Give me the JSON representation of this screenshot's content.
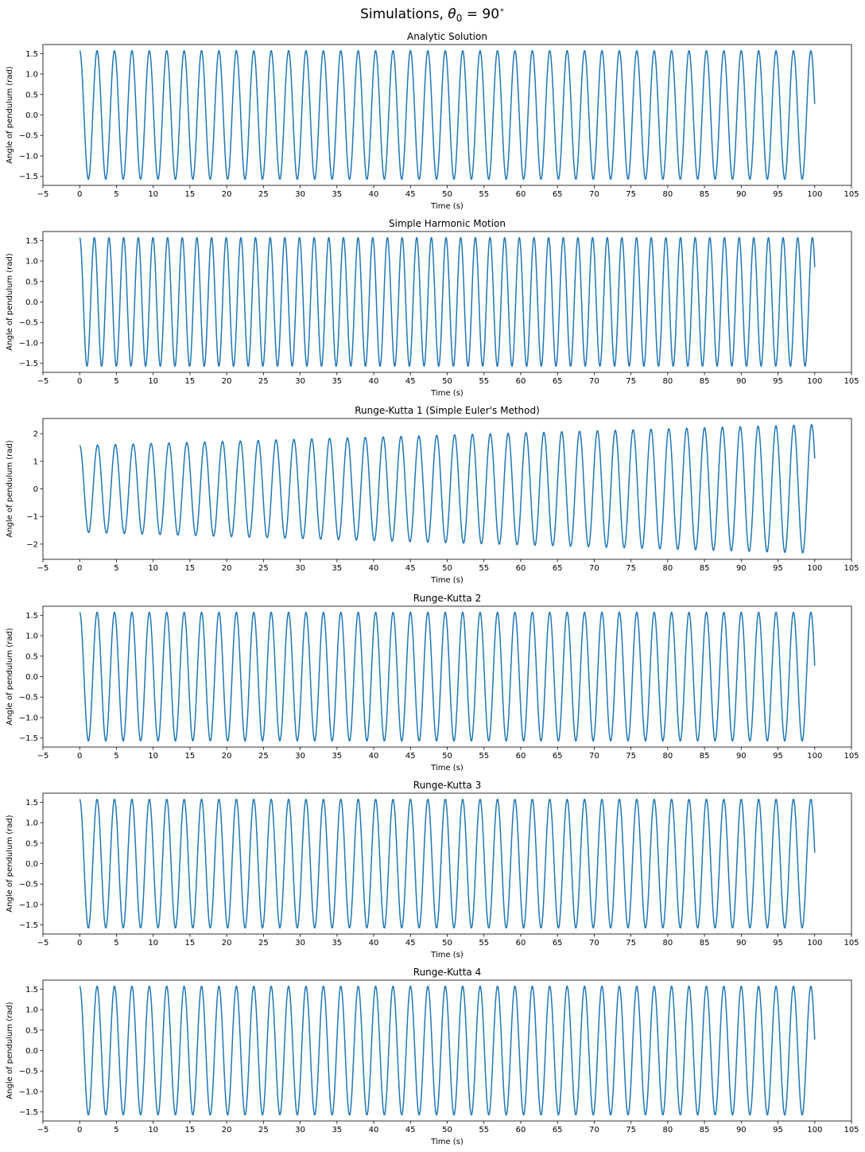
{
  "figure": {
    "suptitle_prefix": "Simulations, ",
    "suptitle_theta": "θ",
    "suptitle_sub": "0",
    "suptitle_suffix": " = 90",
    "suptitle_degree": "∘"
  },
  "style": {
    "line_color": "#1f77b4",
    "spine_color": "#000000",
    "background": "#ffffff"
  },
  "chart_data": [
    {
      "type": "line",
      "title": "Analytic Solution",
      "xlabel": "Time (s)",
      "ylabel": "Angle of pendulum (rad)",
      "xlim": [
        -5,
        105
      ],
      "ylim": [
        -1.72,
        1.72
      ],
      "xticks": [
        -5,
        0,
        5,
        10,
        15,
        20,
        25,
        30,
        35,
        40,
        45,
        50,
        55,
        60,
        65,
        70,
        75,
        80,
        85,
        90,
        95,
        100,
        105
      ],
      "yticks": [
        -1.5,
        -1.0,
        -0.5,
        0.0,
        0.5,
        1.0,
        1.5
      ],
      "ytick_labels": [
        "−1.5",
        "−1.0",
        "−0.5",
        "0.0",
        "0.5",
        "1.0",
        "1.5"
      ],
      "series": [
        {
          "x_start": 0,
          "x_end": 100,
          "amplitude_start": 1.571,
          "amplitude_end": 1.571,
          "period": 2.368,
          "final_value": 0.27
        }
      ]
    },
    {
      "type": "line",
      "title": "Simple Harmonic Motion",
      "xlabel": "Time (s)",
      "ylabel": "Angle of pendulum (rad)",
      "xlim": [
        -5,
        105
      ],
      "ylim": [
        -1.72,
        1.72
      ],
      "xticks": [
        -5,
        0,
        5,
        10,
        15,
        20,
        25,
        30,
        35,
        40,
        45,
        50,
        55,
        60,
        65,
        70,
        75,
        80,
        85,
        90,
        95,
        100,
        105
      ],
      "yticks": [
        -1.5,
        -1.0,
        -0.5,
        0.0,
        0.5,
        1.0,
        1.5
      ],
      "ytick_labels": [
        "−1.5",
        "−1.0",
        "−0.5",
        "0.0",
        "0.5",
        "1.0",
        "1.5"
      ],
      "series": [
        {
          "x_start": 0,
          "x_end": 100,
          "amplitude_start": 1.571,
          "amplitude_end": 1.571,
          "period": 2.006,
          "final_value": 0.85
        }
      ]
    },
    {
      "type": "line",
      "title": "Runge-Kutta 1 (Simple Euler's Method)",
      "xlabel": "Time (s)",
      "ylabel": "Angle of pendulum (rad)",
      "xlim": [
        -5,
        105
      ],
      "ylim": [
        -2.55,
        2.55
      ],
      "xticks": [
        -5,
        0,
        5,
        10,
        15,
        20,
        25,
        30,
        35,
        40,
        45,
        50,
        55,
        60,
        65,
        70,
        75,
        80,
        85,
        90,
        95,
        100,
        105
      ],
      "yticks": [
        -2,
        -1,
        0,
        1,
        2
      ],
      "ytick_labels": [
        "−2",
        "−1",
        "0",
        "1",
        "2"
      ],
      "series": [
        {
          "x_start": 0,
          "x_end": 100,
          "amplitude_start": 1.571,
          "amplitude_end": 2.33,
          "period": 2.44,
          "final_value": 1.1
        }
      ]
    },
    {
      "type": "line",
      "title": "Runge-Kutta 2",
      "xlabel": "Time (s)",
      "ylabel": "Angle of pendulum (rad)",
      "xlim": [
        -5,
        105
      ],
      "ylim": [
        -1.72,
        1.72
      ],
      "xticks": [
        -5,
        0,
        5,
        10,
        15,
        20,
        25,
        30,
        35,
        40,
        45,
        50,
        55,
        60,
        65,
        70,
        75,
        80,
        85,
        90,
        95,
        100,
        105
      ],
      "yticks": [
        -1.5,
        -1.0,
        -0.5,
        0.0,
        0.5,
        1.0,
        1.5
      ],
      "ytick_labels": [
        "−1.5",
        "−1.0",
        "−0.5",
        "0.0",
        "0.5",
        "1.0",
        "1.5"
      ],
      "series": [
        {
          "x_start": 0,
          "x_end": 100,
          "amplitude_start": 1.571,
          "amplitude_end": 1.571,
          "period": 2.368,
          "final_value": 0.27
        }
      ]
    },
    {
      "type": "line",
      "title": "Runge-Kutta 3",
      "xlabel": "Time (s)",
      "ylabel": "Angle of pendulum (rad)",
      "xlim": [
        -5,
        105
      ],
      "ylim": [
        -1.72,
        1.72
      ],
      "xticks": [
        -5,
        0,
        5,
        10,
        15,
        20,
        25,
        30,
        35,
        40,
        45,
        50,
        55,
        60,
        65,
        70,
        75,
        80,
        85,
        90,
        95,
        100,
        105
      ],
      "yticks": [
        -1.5,
        -1.0,
        -0.5,
        0.0,
        0.5,
        1.0,
        1.5
      ],
      "ytick_labels": [
        "−1.5",
        "−1.0",
        "−0.5",
        "0.0",
        "0.5",
        "1.0",
        "1.5"
      ],
      "series": [
        {
          "x_start": 0,
          "x_end": 100,
          "amplitude_start": 1.571,
          "amplitude_end": 1.571,
          "period": 2.368,
          "final_value": 0.27
        }
      ]
    },
    {
      "type": "line",
      "title": "Runge-Kutta 4",
      "xlabel": "Time (s)",
      "ylabel": "Angle of pendulum (rad)",
      "xlim": [
        -5,
        105
      ],
      "ylim": [
        -1.72,
        1.72
      ],
      "xticks": [
        -5,
        0,
        5,
        10,
        15,
        20,
        25,
        30,
        35,
        40,
        45,
        50,
        55,
        60,
        65,
        70,
        75,
        80,
        85,
        90,
        95,
        100,
        105
      ],
      "yticks": [
        -1.5,
        -1.0,
        -0.5,
        0.0,
        0.5,
        1.0,
        1.5
      ],
      "ytick_labels": [
        "−1.5",
        "−1.0",
        "−0.5",
        "0.0",
        "0.5",
        "1.0",
        "1.5"
      ],
      "series": [
        {
          "x_start": 0,
          "x_end": 100,
          "amplitude_start": 1.571,
          "amplitude_end": 1.571,
          "period": 2.368,
          "final_value": 0.27
        }
      ]
    }
  ]
}
